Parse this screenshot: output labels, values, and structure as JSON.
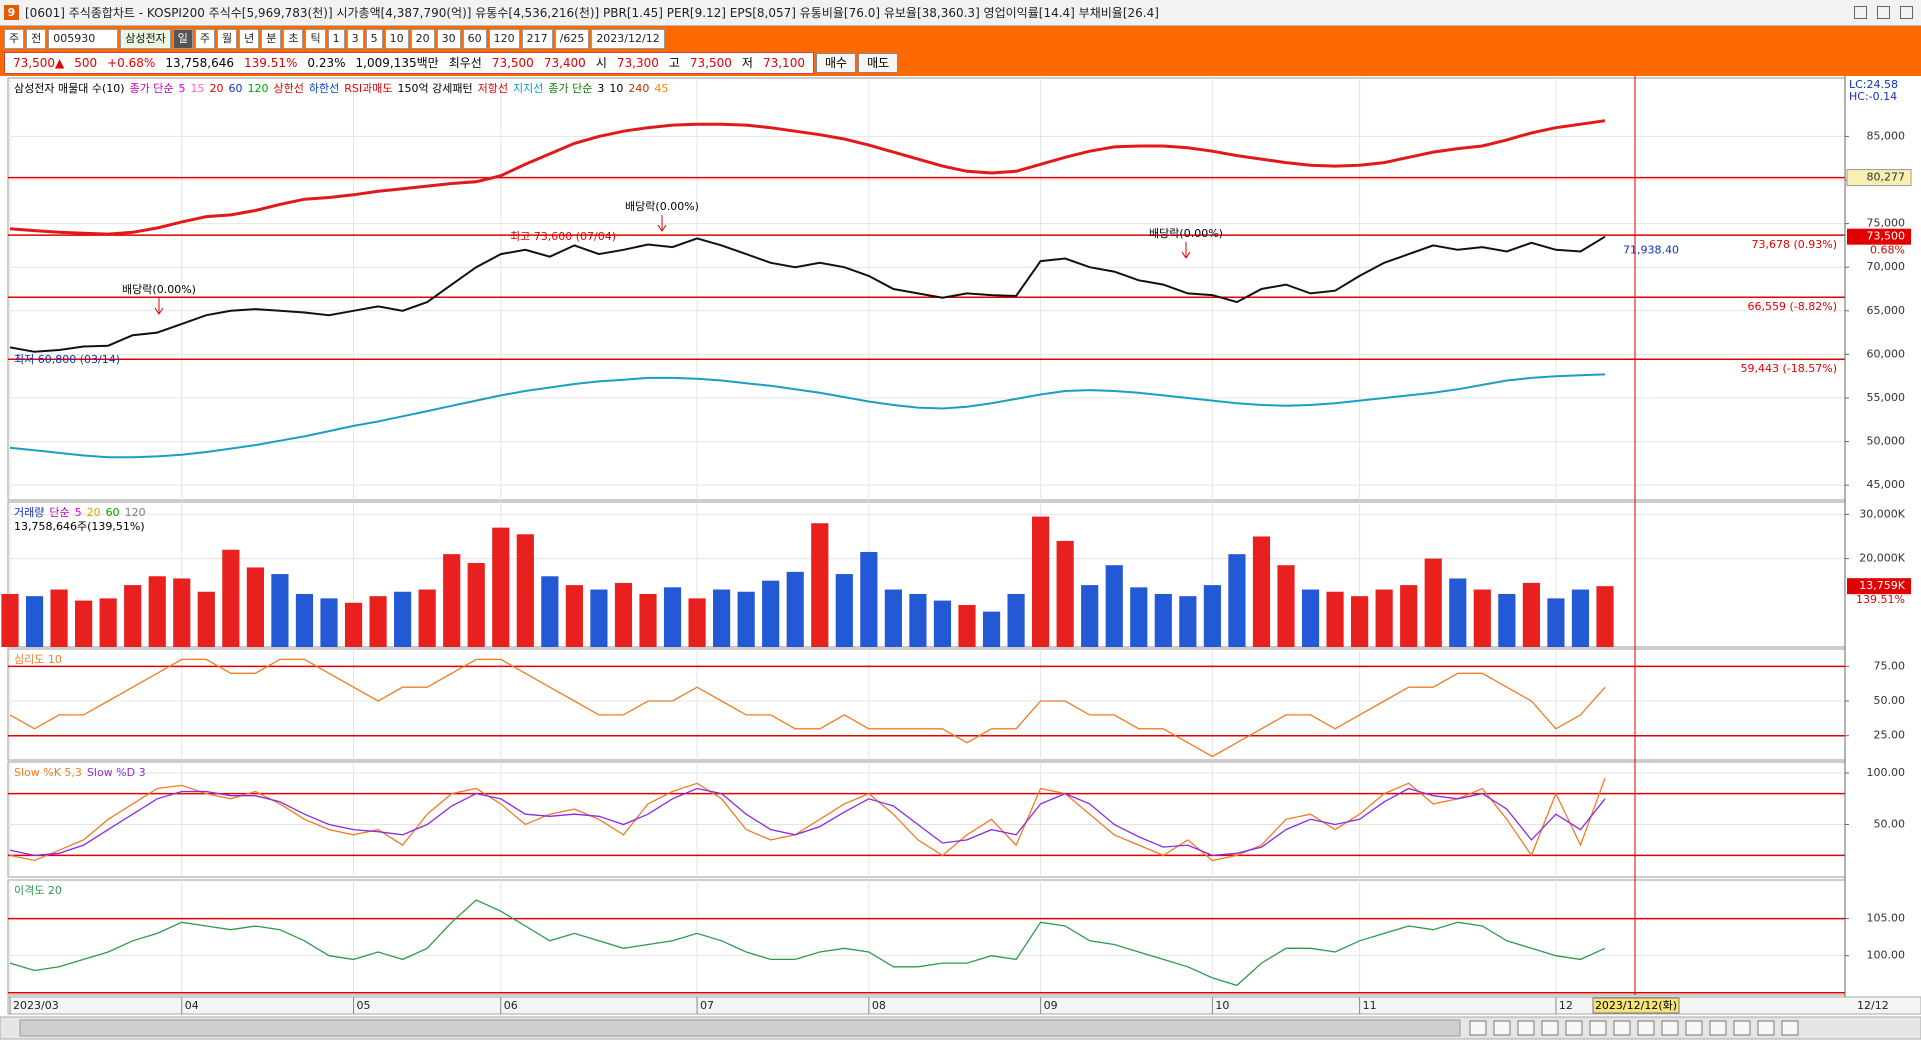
{
  "window": {
    "icon": "9",
    "title": "[0601] 주식종합차트 - KOSPI200 주식수[5,969,783(천)] 시가총액[4,387,790(억)] 유통수[4,536,216(천)] PBR[1.45] PER[9.12] EPS[8,057] 유통비율[76.0] 유보율[38,360.3] 영업이익률[14.4] 부채비율[26.4]"
  },
  "toolbar": {
    "market": [
      "주",
      "전"
    ],
    "code": "005930",
    "name": "삼성전자",
    "periods": [
      "일",
      "주",
      "월",
      "년",
      "분",
      "초",
      "틱"
    ],
    "intervals": [
      "1",
      "3",
      "5",
      "10",
      "20",
      "30",
      "60",
      "120"
    ],
    "count": "217",
    "total": "/625",
    "date": "2023/12/12"
  },
  "quote": {
    "items": [
      {
        "text": "73,500▲",
        "color": "#e00000"
      },
      {
        "text": "500",
        "color": "#e00000"
      },
      {
        "text": "+0.68%",
        "color": "#e00000"
      },
      {
        "text": "13,758,646",
        "color": "#000000"
      },
      {
        "text": "139.51%",
        "color": "#e00000"
      },
      {
        "text": "0.23%",
        "color": "#000000"
      },
      {
        "text": "1,009,135백만",
        "color": "#000000"
      },
      {
        "text": "최우선",
        "color": "#000000"
      },
      {
        "text": "73,500",
        "color": "#e00000"
      },
      {
        "text": "73,400",
        "color": "#e00000"
      },
      {
        "text": "시",
        "color": "#000000"
      },
      {
        "text": "73,300",
        "color": "#e00000"
      },
      {
        "text": "고",
        "color": "#000000"
      },
      {
        "text": "73,500",
        "color": "#e00000"
      },
      {
        "text": "저",
        "color": "#000000"
      },
      {
        "text": "73,100",
        "color": "#e00000"
      }
    ],
    "buttons": [
      "매수",
      "매도"
    ]
  },
  "chart_data": [
    {
      "type": "line",
      "grid": true,
      "legend": [
        {
          "text": "삼성전자 매물대 수(10)",
          "color": "#000000"
        },
        {
          "text": "종가 단순",
          "color": "#c000c0"
        },
        {
          "text": "5",
          "color": "#e000e0"
        },
        {
          "text": "15",
          "color": "#ff66cc"
        },
        {
          "text": "20",
          "color": "#e00000"
        },
        {
          "text": "60",
          "color": "#1030c0"
        },
        {
          "text": "120",
          "color": "#00a000"
        },
        {
          "text": "상한선",
          "color": "#e00000"
        },
        {
          "text": "하한선",
          "color": "#0040e0"
        },
        {
          "text": "RSI과매도",
          "color": "#e00000"
        },
        {
          "text": "150억 강세패턴",
          "color": "#000000"
        },
        {
          "text": "저항선",
          "color": "#e00000"
        },
        {
          "text": "지지선",
          "color": "#00a0d0"
        },
        {
          "text": "종가 단순",
          "color": "#008000"
        },
        {
          "text": "3",
          "color": "#000000"
        },
        {
          "text": "10",
          "color": "#000000"
        },
        {
          "text": "240",
          "color": "#c03000"
        },
        {
          "text": "45",
          "color": "#ff8000"
        }
      ],
      "corner_texts": [
        "LC:24.58",
        "HC:-0.14"
      ],
      "annotations": [
        "배당락(0.00%)",
        "배당락(0.00%)",
        "최고 73,600 (07/04)",
        "배당락(0.00%)",
        "최저 60,800 (03/14)"
      ],
      "ylim": [
        43300,
        91700
      ],
      "yticks": [
        {
          "value": 85000,
          "label": "85,000"
        },
        {
          "value": 80000,
          "label": "80,000"
        },
        {
          "value": 75000,
          "label": "75,000"
        },
        {
          "value": 70000,
          "label": "70,000"
        },
        {
          "value": 65000,
          "label": "65,000"
        },
        {
          "value": 60000,
          "label": "60,000"
        },
        {
          "value": 55000,
          "label": "55,000"
        },
        {
          "value": 50000,
          "label": "50,000"
        },
        {
          "value": 45000,
          "label": "45,000"
        }
      ],
      "levels": [
        {
          "value": 80277,
          "label": "80,277",
          "style": "box"
        },
        {
          "value": 73678,
          "label": "73,678 (0.93%)",
          "style": "inline"
        },
        {
          "value": 66559,
          "label": "66,559 (-8.82%)",
          "style": "inline"
        },
        {
          "value": 59443,
          "label": "59,443 (-18.57%)",
          "style": "inline"
        }
      ],
      "current": {
        "value": 73500,
        "label": "73,500",
        "change": "0.68%"
      },
      "trend_value": {
        "value": 71938.4,
        "label": "71,938.40"
      },
      "series": [
        {
          "color": "#111111",
          "width": 2,
          "values": [
            60800,
            60300,
            60500,
            60900,
            61000,
            62200,
            62500,
            63500,
            64500,
            65000,
            65200,
            65000,
            64800,
            64500,
            65000,
            65500,
            65000,
            66000,
            68000,
            70000,
            71500,
            72000,
            71200,
            72500,
            71500,
            72000,
            72600,
            72300,
            73300,
            72500,
            71500,
            70500,
            70000,
            70500,
            70000,
            69000,
            67500,
            67000,
            66500,
            67000,
            66800,
            66700,
            70700,
            71000,
            70000,
            69500,
            68500,
            68000,
            67000,
            66800,
            66000,
            67500,
            68000,
            67000,
            67300,
            69000,
            70500,
            71500,
            72500,
            72000,
            72300,
            71800,
            72800,
            72000,
            71800,
            73500
          ]
        },
        {
          "color": "#e0191b",
          "width": 3,
          "values": [
            74400,
            74200,
            74000,
            73900,
            73800,
            74000,
            74500,
            75200,
            75800,
            76000,
            76500,
            77200,
            77800,
            78000,
            78300,
            78700,
            79000,
            79300,
            79600,
            79800,
            80500,
            81800,
            83000,
            84200,
            85000,
            85600,
            86000,
            86300,
            86400,
            86400,
            86300,
            86000,
            85600,
            85200,
            84700,
            84000,
            83200,
            82400,
            81600,
            81000,
            80800,
            81000,
            81800,
            82600,
            83300,
            83800,
            83900,
            83900,
            83700,
            83300,
            82800,
            82400,
            82000,
            81700,
            81600,
            81700,
            82000,
            82600,
            83200,
            83600,
            83900,
            84600,
            85400,
            86000,
            86400,
            86800
          ]
        },
        {
          "color": "#1a9fbf",
          "width": 2,
          "values": [
            49300,
            49000,
            48700,
            48400,
            48200,
            48200,
            48300,
            48500,
            48800,
            49200,
            49600,
            50100,
            50600,
            51200,
            51800,
            52300,
            52900,
            53500,
            54100,
            54700,
            55300,
            55800,
            56200,
            56600,
            56900,
            57100,
            57300,
            57300,
            57200,
            57000,
            56700,
            56400,
            56000,
            55600,
            55100,
            54600,
            54200,
            53900,
            53800,
            54000,
            54400,
            54900,
            55400,
            55800,
            55900,
            55800,
            55600,
            55300,
            55000,
            54700,
            54400,
            54200,
            54100,
            54200,
            54400,
            54700,
            55000,
            55300,
            55600,
            56000,
            56500,
            57000,
            57300,
            57500,
            57600,
            57700
          ]
        }
      ]
    },
    {
      "type": "bar",
      "grid": true,
      "up_color": "#e8201e",
      "down_color": "#2459d6",
      "legend": [
        {
          "text": "거래량",
          "color": "#1030c0"
        },
        {
          "text": "단순",
          "color": "#c000c0"
        },
        {
          "text": "5",
          "color": "#e000e0"
        },
        {
          "text": "20",
          "color": "#e0a000"
        },
        {
          "text": "60",
          "color": "#00a000"
        },
        {
          "text": "120",
          "color": "#808080"
        }
      ],
      "info": "13,758,646주(139,51%)",
      "current": {
        "value": 13759,
        "label": "13,759K",
        "change": "139.51%"
      },
      "ylim": [
        0,
        32800
      ],
      "yticks": [
        {
          "value": 30000,
          "label": "30,000K"
        },
        {
          "value": 20000,
          "label": "20,000K"
        }
      ],
      "values": [
        12000,
        11500,
        13000,
        10500,
        11000,
        14000,
        16000,
        15500,
        12500,
        22000,
        18000,
        16500,
        12000,
        11000,
        10000,
        11500,
        12500,
        13000,
        21000,
        19000,
        27000,
        25500,
        16000,
        14000,
        13000,
        14500,
        12000,
        13500,
        11000,
        13000,
        12500,
        15000,
        17000,
        28000,
        16500,
        21500,
        13000,
        12000,
        10500,
        9500,
        8000,
        12000,
        29500,
        24000,
        14000,
        18500,
        13500,
        12000,
        11500,
        14000,
        21000,
        25000,
        18500,
        13000,
        12500,
        11500,
        13000,
        14000,
        20000,
        15500,
        13000,
        12000,
        14500,
        11000,
        13000,
        13759
      ]
    },
    {
      "type": "line",
      "grid": true,
      "legend": [
        {
          "text": "심리도 10",
          "color": "#ef7c25"
        }
      ],
      "ylim": [
        7.5,
        87.5
      ],
      "ref_lines": [
        75,
        25
      ],
      "yticks": [
        {
          "value": 75,
          "label": "75.00"
        },
        {
          "value": 50,
          "label": "50.00"
        },
        {
          "value": 25,
          "label": "25.00"
        }
      ],
      "series": [
        {
          "color": "#ef7c25",
          "width": 1.3,
          "values": [
            40,
            30,
            40,
            40,
            50,
            60,
            70,
            80,
            80,
            70,
            70,
            80,
            80,
            70,
            60,
            50,
            60,
            60,
            70,
            80,
            80,
            70,
            60,
            50,
            40,
            40,
            50,
            50,
            60,
            50,
            40,
            40,
            30,
            30,
            40,
            30,
            30,
            30,
            30,
            20,
            30,
            30,
            50,
            50,
            40,
            40,
            30,
            30,
            20,
            10,
            20,
            30,
            40,
            40,
            30,
            40,
            50,
            60,
            60,
            70,
            70,
            60,
            50,
            30,
            40,
            60
          ]
        }
      ]
    },
    {
      "type": "line",
      "grid": true,
      "legend": [
        {
          "text": "Slow %K 5,3",
          "color": "#ef7c25"
        },
        {
          "text": "Slow %D 3",
          "color": "#8a2be2"
        }
      ],
      "ylim": [
        -1,
        110.7
      ],
      "ref_lines": [
        80,
        20
      ],
      "yticks": [
        {
          "value": 100,
          "label": "100.00"
        },
        {
          "value": 50,
          "label": "50.00"
        }
      ],
      "series": [
        {
          "color": "#ef7c25",
          "width": 1.3,
          "values": [
            20,
            15,
            25,
            35,
            55,
            70,
            85,
            88,
            80,
            75,
            82,
            70,
            55,
            45,
            40,
            45,
            30,
            60,
            80,
            85,
            70,
            50,
            60,
            65,
            55,
            40,
            70,
            82,
            90,
            75,
            45,
            35,
            40,
            55,
            70,
            80,
            60,
            35,
            20,
            40,
            55,
            30,
            85,
            80,
            60,
            40,
            30,
            20,
            35,
            15,
            20,
            30,
            55,
            60,
            45,
            60,
            80,
            90,
            70,
            75,
            85,
            55,
            20,
            80,
            30,
            95
          ]
        },
        {
          "color": "#8a2be2",
          "width": 1.3,
          "values": [
            25,
            20,
            22,
            30,
            45,
            60,
            75,
            82,
            82,
            78,
            78,
            72,
            60,
            50,
            45,
            43,
            40,
            50,
            68,
            80,
            75,
            60,
            58,
            60,
            58,
            50,
            60,
            75,
            85,
            80,
            60,
            45,
            40,
            48,
            62,
            75,
            68,
            50,
            32,
            35,
            45,
            40,
            70,
            80,
            70,
            50,
            38,
            28,
            30,
            20,
            22,
            28,
            45,
            55,
            50,
            55,
            72,
            85,
            78,
            75,
            80,
            65,
            35,
            60,
            45,
            75
          ]
        }
      ]
    },
    {
      "type": "line",
      "grid": true,
      "legend": [
        {
          "text": "이격도 20",
          "color": "#2e9a4e"
        }
      ],
      "ylim": [
        94.7,
        110.2
      ],
      "ref_lines": [
        105,
        95
      ],
      "yticks": [
        {
          "value": 105,
          "label": "105.00"
        },
        {
          "value": 100,
          "label": "100.00"
        }
      ],
      "series": [
        {
          "color": "#2e9a4e",
          "width": 1.3,
          "values": [
            99,
            98,
            98.5,
            99.5,
            100.5,
            102,
            103,
            104.5,
            104,
            103.5,
            104,
            103.5,
            102,
            100,
            99.5,
            100.5,
            99.5,
            101,
            104.5,
            107.5,
            106,
            104,
            102,
            103,
            102,
            101,
            101.5,
            102,
            103,
            102,
            100.5,
            99.5,
            99.5,
            100.5,
            101,
            100.5,
            98.5,
            98.5,
            99,
            99,
            100,
            99.5,
            104.5,
            104,
            102,
            101.5,
            100.5,
            99.5,
            98.5,
            97,
            96,
            99,
            101,
            101,
            100.5,
            102,
            103,
            104,
            103.5,
            104.5,
            104,
            102,
            101,
            100,
            99.5,
            101
          ]
        }
      ],
      "categories": [
        "2023/03",
        null,
        null,
        null,
        null,
        null,
        null,
        "04",
        null,
        null,
        null,
        null,
        null,
        null,
        "05",
        null,
        null,
        null,
        null,
        null,
        "06",
        null,
        null,
        null,
        null,
        null,
        null,
        null,
        "07",
        null,
        null,
        null,
        null,
        null,
        null,
        "08",
        null,
        null,
        null,
        null,
        null,
        null,
        "09",
        null,
        null,
        null,
        null,
        null,
        null,
        "10",
        null,
        null,
        null,
        null,
        null,
        "11",
        null,
        null,
        null,
        null,
        null,
        null,
        null,
        "12",
        null,
        null
      ],
      "end_label": "12/12",
      "cursor_label": "2023/12/12(화)"
    }
  ]
}
